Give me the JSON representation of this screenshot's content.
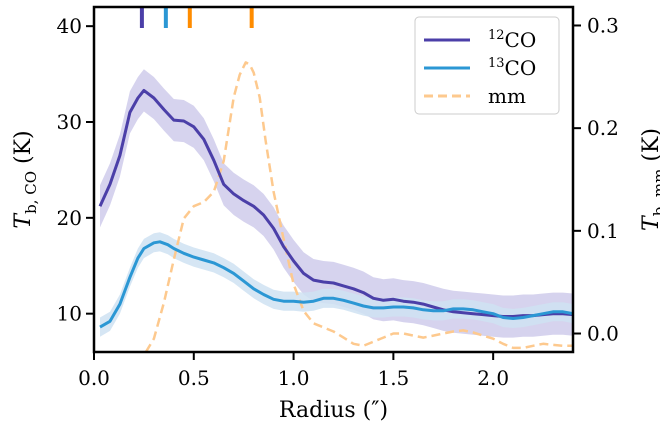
{
  "chart_data": {
    "type": "line",
    "title": "",
    "xlabel": "Radius (″)",
    "ylabel_left": {
      "main": "T",
      "sub": "b, CO",
      "unit": " (K)"
    },
    "ylabel_right": {
      "main": "T",
      "sub": "b, mm",
      "unit": " (K)"
    },
    "xlim": [
      0.0,
      2.4
    ],
    "ylim_left": [
      6.0,
      42.0
    ],
    "ylim_right": [
      -0.018,
      0.318
    ],
    "x_ticks": [
      "0.0",
      "0.5",
      "1.0",
      "1.5",
      "2.0"
    ],
    "y_ticks_left": [
      "10",
      "20",
      "30",
      "40"
    ],
    "y_ticks_right": [
      "0.0",
      "0.1",
      "0.2",
      "0.3"
    ],
    "legend_position": "top-right",
    "series": [
      {
        "name_sup": "12",
        "name": "CO",
        "axis": "left",
        "style": "solid",
        "color": "#4b3fa8",
        "band_color": "#cfcbeb",
        "band_halfwidth": 2.2,
        "x": [
          0.03,
          0.08,
          0.13,
          0.18,
          0.22,
          0.25,
          0.3,
          0.35,
          0.4,
          0.45,
          0.5,
          0.55,
          0.6,
          0.65,
          0.7,
          0.75,
          0.8,
          0.85,
          0.9,
          0.95,
          1.0,
          1.05,
          1.1,
          1.15,
          1.2,
          1.25,
          1.3,
          1.35,
          1.4,
          1.45,
          1.5,
          1.55,
          1.6,
          1.65,
          1.7,
          1.75,
          1.8,
          1.85,
          1.9,
          1.95,
          2.0,
          2.05,
          2.1,
          2.15,
          2.2,
          2.25,
          2.3,
          2.35,
          2.4
        ],
        "y": [
          21.2,
          23.5,
          26.5,
          31.0,
          32.5,
          33.3,
          32.5,
          31.3,
          30.2,
          30.1,
          29.5,
          28.2,
          26.0,
          23.5,
          22.5,
          21.8,
          21.2,
          20.3,
          18.9,
          17.0,
          15.5,
          14.2,
          13.5,
          13.3,
          13.2,
          12.9,
          12.6,
          12.2,
          11.6,
          11.4,
          11.5,
          11.3,
          11.2,
          11.0,
          10.7,
          10.4,
          10.2,
          10.1,
          10.0,
          9.9,
          9.8,
          9.7,
          9.7,
          9.8,
          9.8,
          9.9,
          10.0,
          10.0,
          9.9
        ]
      },
      {
        "name_sup": "13",
        "name": "CO",
        "axis": "left",
        "style": "solid",
        "color": "#2b97d4",
        "band_color": "#cfe2f2",
        "band_halfwidth": 1.0,
        "x": [
          0.03,
          0.08,
          0.13,
          0.18,
          0.22,
          0.25,
          0.3,
          0.33,
          0.37,
          0.4,
          0.45,
          0.5,
          0.55,
          0.6,
          0.65,
          0.7,
          0.75,
          0.8,
          0.85,
          0.9,
          0.95,
          1.0,
          1.05,
          1.1,
          1.15,
          1.2,
          1.25,
          1.3,
          1.35,
          1.4,
          1.45,
          1.5,
          1.55,
          1.6,
          1.65,
          1.7,
          1.75,
          1.8,
          1.85,
          1.9,
          1.95,
          2.0,
          2.05,
          2.1,
          2.15,
          2.2,
          2.25,
          2.3,
          2.35,
          2.4
        ],
        "y": [
          8.6,
          9.2,
          11.0,
          13.8,
          15.8,
          16.8,
          17.4,
          17.5,
          17.2,
          16.8,
          16.3,
          15.9,
          15.6,
          15.3,
          14.8,
          14.2,
          13.4,
          12.6,
          12.0,
          11.5,
          11.3,
          11.3,
          11.2,
          11.3,
          11.6,
          11.6,
          11.4,
          11.1,
          10.8,
          10.6,
          10.6,
          10.7,
          10.7,
          10.6,
          10.4,
          10.3,
          10.3,
          10.5,
          10.5,
          10.4,
          10.2,
          10.0,
          9.6,
          9.5,
          9.6,
          9.8,
          10.0,
          10.2,
          10.2,
          10.0
        ]
      },
      {
        "name": "mm",
        "axis": "right",
        "style": "dashed",
        "color": "#fdc98e",
        "x": [
          0.26,
          0.3,
          0.35,
          0.4,
          0.45,
          0.5,
          0.55,
          0.6,
          0.65,
          0.7,
          0.73,
          0.76,
          0.78,
          0.8,
          0.83,
          0.86,
          0.9,
          0.95,
          1.0,
          1.05,
          1.1,
          1.15,
          1.2,
          1.25,
          1.3,
          1.35,
          1.4,
          1.45,
          1.5,
          1.55,
          1.6,
          1.65,
          1.7,
          1.75,
          1.8,
          1.85,
          1.9,
          1.95,
          2.0,
          2.05,
          2.1,
          2.15,
          2.2,
          2.25,
          2.3,
          2.35,
          2.4
        ],
        "y": [
          -0.018,
          -0.005,
          0.03,
          0.072,
          0.112,
          0.124,
          0.128,
          0.138,
          0.168,
          0.23,
          0.252,
          0.264,
          0.262,
          0.254,
          0.23,
          0.188,
          0.138,
          0.092,
          0.048,
          0.022,
          0.01,
          0.006,
          0.002,
          -0.004,
          -0.01,
          -0.012,
          -0.008,
          -0.004,
          0.0,
          0.0,
          -0.002,
          -0.004,
          -0.002,
          0.0,
          0.002,
          0.003,
          0.001,
          -0.002,
          -0.005,
          -0.01,
          -0.014,
          -0.014,
          -0.012,
          -0.01,
          -0.011,
          -0.012,
          -0.012
        ]
      }
    ],
    "top_markers": [
      {
        "x": 0.24,
        "color": "#4b3fa8"
      },
      {
        "x": 0.36,
        "color": "#2b97d4"
      },
      {
        "x": 0.48,
        "color": "#ff8c00"
      },
      {
        "x": 0.79,
        "color": "#ff8c00"
      }
    ]
  }
}
